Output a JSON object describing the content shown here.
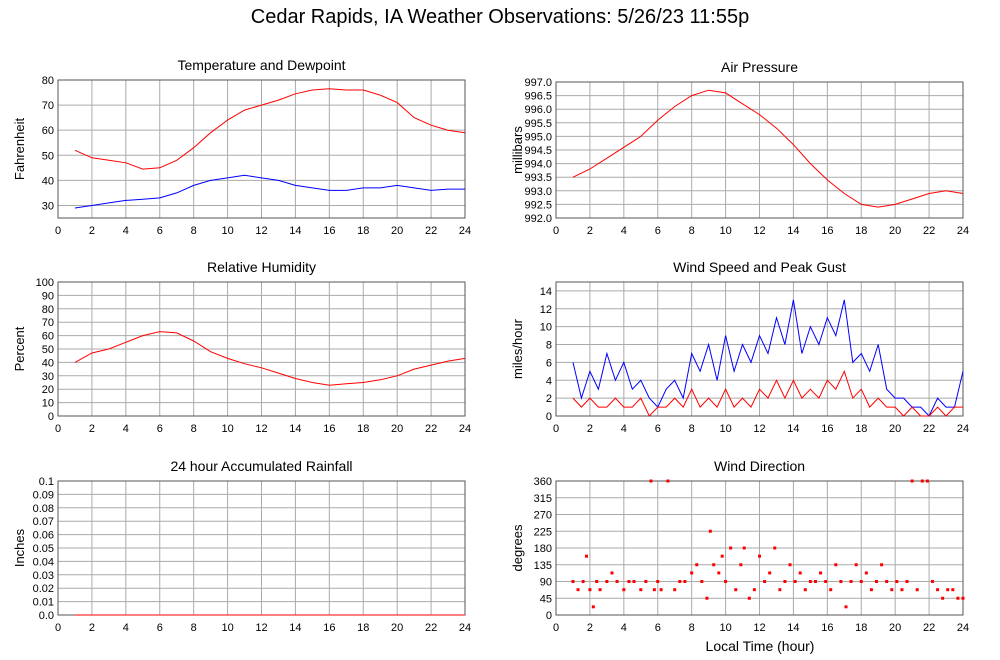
{
  "title": "Cedar Rapids, IA Weather Observations: 5/26/23 11:55p",
  "x_axis_label": "Local Time (hour)",
  "colors": {
    "red": "#ff0000",
    "blue": "#0000ff",
    "grid": "#aaaaaa",
    "frame": "#555555"
  },
  "chart_data": [
    {
      "id": "temp",
      "type": "line",
      "title": "Temperature and Dewpoint",
      "ylabel": "Fahrenheit",
      "xlim": [
        0,
        24
      ],
      "ylim": [
        25,
        80
      ],
      "yticks": [
        30,
        40,
        50,
        60,
        70,
        80
      ],
      "ytick_labels": [
        "30",
        "40",
        "50",
        "60",
        "70",
        "80"
      ],
      "xticks": [
        2,
        4,
        6,
        8,
        10,
        12,
        14,
        16,
        18,
        20,
        22,
        24
      ],
      "series": [
        {
          "color": "red",
          "x": [
            1,
            2,
            3,
            4,
            5,
            6,
            7,
            8,
            9,
            10,
            11,
            12,
            13,
            14,
            15,
            16,
            17,
            18,
            19,
            20,
            21,
            22,
            23,
            24
          ],
          "y": [
            52,
            49,
            48,
            47,
            44.5,
            45,
            48,
            53,
            59,
            64,
            68,
            70,
            72,
            74.5,
            76,
            76.5,
            76,
            76,
            74,
            71,
            65,
            62,
            60,
            59
          ]
        },
        {
          "color": "blue",
          "x": [
            1,
            2,
            3,
            4,
            5,
            6,
            7,
            8,
            9,
            10,
            11,
            12,
            13,
            14,
            15,
            16,
            17,
            18,
            19,
            20,
            21,
            22,
            23,
            24
          ],
          "y": [
            29,
            30,
            31,
            32,
            32.5,
            33,
            35,
            38,
            40,
            41,
            42,
            41,
            40,
            38,
            37,
            36,
            36,
            37,
            37,
            38,
            37,
            36,
            36.5,
            36.5
          ]
        }
      ]
    },
    {
      "id": "pressure",
      "type": "line",
      "title": "Air Pressure",
      "ylabel": "millibars",
      "xlim": [
        0,
        24
      ],
      "ylim": [
        992.0,
        997.0
      ],
      "yticks": [
        992.0,
        992.5,
        993.0,
        993.5,
        994.0,
        994.5,
        995.0,
        995.5,
        996.0,
        996.5,
        997.0
      ],
      "ytick_labels": [
        "992.0",
        "992.5",
        "993.0",
        "993.5",
        "994.0",
        "994.5",
        "995.0",
        "995.5",
        "996.0",
        "996.5",
        "997.0"
      ],
      "xticks": [
        2,
        4,
        6,
        8,
        10,
        12,
        14,
        16,
        18,
        20,
        22,
        24
      ],
      "series": [
        {
          "color": "red",
          "x": [
            1,
            2,
            3,
            4,
            5,
            6,
            7,
            8,
            9,
            10,
            11,
            12,
            13,
            14,
            15,
            16,
            17,
            18,
            19,
            20,
            21,
            22,
            23,
            24
          ],
          "y": [
            993.5,
            993.8,
            994.2,
            994.6,
            995.0,
            995.6,
            996.1,
            996.5,
            996.7,
            996.6,
            996.2,
            995.8,
            995.3,
            994.7,
            994.0,
            993.4,
            992.9,
            992.5,
            992.4,
            992.5,
            992.7,
            992.9,
            993.0,
            992.9
          ]
        }
      ]
    },
    {
      "id": "rh",
      "type": "line",
      "title": "Relative Humidity",
      "ylabel": "Percent",
      "xlim": [
        0,
        24
      ],
      "ylim": [
        0,
        100
      ],
      "yticks": [
        0,
        10,
        20,
        30,
        40,
        50,
        60,
        70,
        80,
        90,
        100
      ],
      "ytick_labels": [
        "0",
        "10",
        "20",
        "30",
        "40",
        "50",
        "60",
        "70",
        "80",
        "90",
        "100"
      ],
      "xticks": [
        2,
        4,
        6,
        8,
        10,
        12,
        14,
        16,
        18,
        20,
        22,
        24
      ],
      "series": [
        {
          "color": "red",
          "x": [
            1,
            2,
            3,
            4,
            5,
            6,
            7,
            8,
            9,
            10,
            11,
            12,
            13,
            14,
            15,
            16,
            17,
            18,
            19,
            20,
            21,
            22,
            23,
            24
          ],
          "y": [
            40,
            47,
            50,
            55,
            60,
            63,
            62,
            56,
            48,
            43,
            39,
            36,
            32,
            28,
            25,
            23,
            24,
            25,
            27,
            30,
            35,
            38,
            41,
            43
          ]
        }
      ]
    },
    {
      "id": "wind",
      "type": "line",
      "title": "Wind Speed and Peak Gust",
      "ylabel": "miles/hour",
      "xlim": [
        0,
        24
      ],
      "ylim": [
        0,
        15
      ],
      "yticks": [
        0,
        2,
        4,
        6,
        8,
        10,
        12,
        14
      ],
      "ytick_labels": [
        "0",
        "2",
        "4",
        "6",
        "8",
        "10",
        "12",
        "14"
      ],
      "xticks": [
        2,
        4,
        6,
        8,
        10,
        12,
        14,
        16,
        18,
        20,
        22,
        24
      ],
      "series": [
        {
          "color": "blue",
          "x": [
            1,
            1.5,
            2,
            2.5,
            3,
            3.5,
            4,
            4.5,
            5,
            5.5,
            6,
            6.5,
            7,
            7.5,
            8,
            8.5,
            9,
            9.5,
            10,
            10.5,
            11,
            11.5,
            12,
            12.5,
            13,
            13.5,
            14,
            14.5,
            15,
            15.5,
            16,
            16.5,
            17,
            17.5,
            18,
            18.5,
            19,
            19.5,
            20,
            20.5,
            21,
            21.5,
            22,
            22.5,
            23,
            23.5,
            24
          ],
          "y": [
            6,
            2,
            5,
            3,
            7,
            4,
            6,
            3,
            4,
            2,
            1,
            3,
            4,
            2,
            7,
            5,
            8,
            4,
            9,
            5,
            8,
            6,
            9,
            7,
            11,
            8,
            13,
            7,
            10,
            8,
            11,
            9,
            13,
            6,
            7,
            5,
            8,
            3,
            2,
            2,
            1,
            1,
            0,
            2,
            1,
            1,
            5
          ]
        },
        {
          "color": "red",
          "x": [
            1,
            1.5,
            2,
            2.5,
            3,
            3.5,
            4,
            4.5,
            5,
            5.5,
            6,
            6.5,
            7,
            7.5,
            8,
            8.5,
            9,
            9.5,
            10,
            10.5,
            11,
            11.5,
            12,
            12.5,
            13,
            13.5,
            14,
            14.5,
            15,
            15.5,
            16,
            16.5,
            17,
            17.5,
            18,
            18.5,
            19,
            19.5,
            20,
            20.5,
            21,
            21.5,
            22,
            22.5,
            23,
            23.5,
            24
          ],
          "y": [
            2,
            1,
            2,
            1,
            1,
            2,
            1,
            1,
            2,
            0,
            1,
            1,
            2,
            1,
            3,
            1,
            2,
            1,
            3,
            1,
            2,
            1,
            3,
            2,
            4,
            2,
            4,
            2,
            3,
            2,
            4,
            3,
            5,
            2,
            3,
            1,
            2,
            1,
            1,
            0,
            1,
            0,
            0,
            1,
            0,
            1,
            1
          ]
        }
      ]
    },
    {
      "id": "rain",
      "type": "line",
      "title": "24 hour Accumulated Rainfall",
      "ylabel": "Inches",
      "xlim": [
        0,
        24
      ],
      "ylim": [
        0,
        0.1
      ],
      "yticks": [
        0,
        0.01,
        0.02,
        0.03,
        0.04,
        0.05,
        0.06,
        0.07,
        0.08,
        0.09,
        0.1
      ],
      "ytick_labels": [
        "0.0",
        "0.01",
        "0.02",
        "0.03",
        "0.04",
        "0.05",
        "0.06",
        "0.07",
        "0.08",
        "0.09",
        "0.1"
      ],
      "xticks": [
        2,
        4,
        6,
        8,
        10,
        12,
        14,
        16,
        18,
        20,
        22,
        24
      ],
      "series": [
        {
          "color": "red",
          "x": [
            1,
            24
          ],
          "y": [
            0,
            0
          ]
        }
      ]
    },
    {
      "id": "winddir",
      "type": "scatter",
      "title": "Wind Direction",
      "ylabel": "degrees",
      "xlabel": "Local Time (hour)",
      "xlim": [
        0,
        24
      ],
      "ylim": [
        0,
        360
      ],
      "yticks": [
        0,
        45,
        90,
        135,
        180,
        225,
        270,
        315,
        360
      ],
      "ytick_labels": [
        "0",
        "45",
        "90",
        "135",
        "180",
        "225",
        "270",
        "315",
        "360"
      ],
      "xticks": [
        2,
        4,
        6,
        8,
        10,
        12,
        14,
        16,
        18,
        20,
        22,
        24
      ],
      "series": [
        {
          "color": "red",
          "x": [
            1,
            1.3,
            1.6,
            1.8,
            2,
            2.2,
            2.4,
            2.6,
            3,
            3.3,
            3.6,
            4,
            4.3,
            4.6,
            5,
            5.3,
            5.6,
            5.8,
            6,
            6.2,
            6.6,
            7,
            7.3,
            7.6,
            8,
            8.3,
            8.6,
            8.9,
            9.1,
            9.3,
            9.6,
            9.8,
            10,
            10.3,
            10.6,
            10.9,
            11.1,
            11.4,
            11.7,
            12,
            12.3,
            12.6,
            12.9,
            13.2,
            13.5,
            13.8,
            14.1,
            14.4,
            14.7,
            15,
            15.3,
            15.6,
            15.9,
            16.2,
            16.5,
            16.8,
            17.1,
            17.4,
            17.7,
            18,
            18.3,
            18.6,
            18.9,
            19.2,
            19.5,
            19.8,
            20.1,
            20.4,
            20.7,
            21,
            21.3,
            21.6,
            21.9,
            22.2,
            22.5,
            22.8,
            23.1,
            23.4,
            23.7,
            24
          ],
          "y": [
            90,
            68,
            90,
            158,
            68,
            22,
            90,
            68,
            90,
            113,
            90,
            68,
            90,
            90,
            68,
            90,
            360,
            68,
            90,
            68,
            360,
            68,
            90,
            90,
            113,
            135,
            90,
            45,
            225,
            135,
            113,
            158,
            90,
            180,
            68,
            135,
            180,
            45,
            68,
            158,
            90,
            113,
            180,
            68,
            90,
            135,
            90,
            113,
            68,
            90,
            90,
            113,
            90,
            68,
            135,
            90,
            22,
            90,
            135,
            90,
            113,
            68,
            90,
            135,
            90,
            68,
            90,
            68,
            90,
            360,
            68,
            360,
            360,
            90,
            68,
            45,
            68,
            68,
            45,
            45
          ]
        }
      ]
    }
  ]
}
